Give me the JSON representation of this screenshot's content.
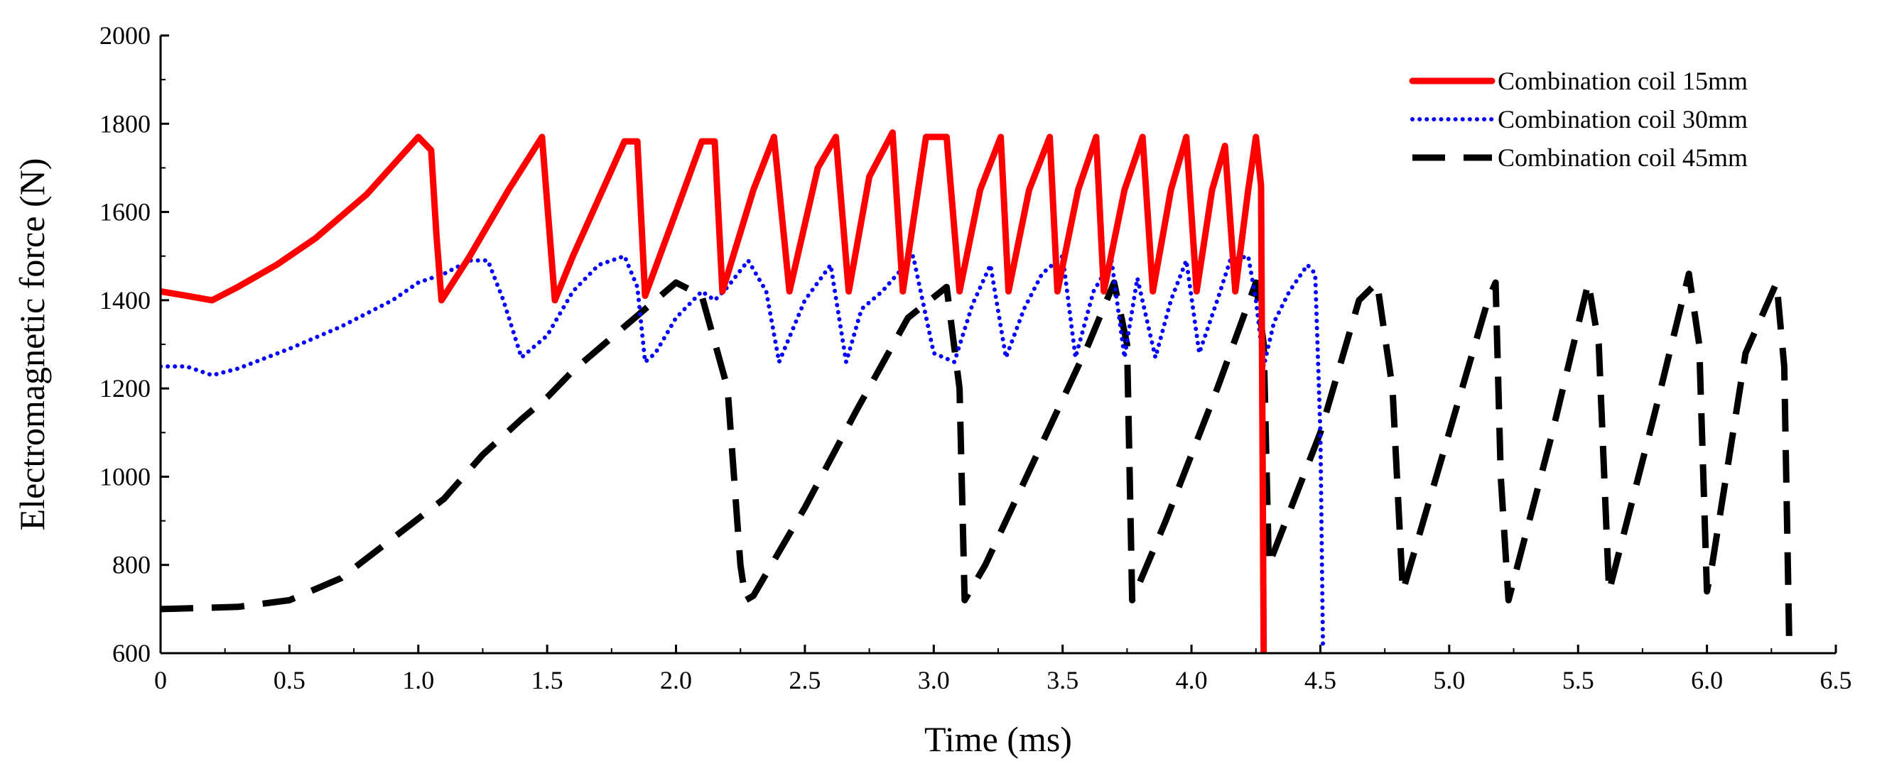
{
  "chart_data": {
    "type": "line",
    "title": "",
    "xlabel": "Time (ms)",
    "ylabel": "Electromagnetic force (N)",
    "xlim": [
      0,
      6.5
    ],
    "ylim": [
      600,
      2000
    ],
    "xticks": [
      0,
      0.5,
      1.0,
      1.5,
      2.0,
      2.5,
      3.0,
      3.5,
      4.0,
      4.5,
      5.0,
      5.5,
      6.0,
      6.5
    ],
    "xtick_labels": [
      "0",
      "0.5",
      "1.0",
      "1.5",
      "2.0",
      "2.5",
      "3.0",
      "3.5",
      "4.0",
      "4.5",
      "5.0",
      "5.5",
      "6.0",
      "6.5"
    ],
    "yticks": [
      600,
      800,
      1000,
      1200,
      1400,
      1600,
      1800,
      2000
    ],
    "ytick_labels": [
      "600",
      "800",
      "1000",
      "1200",
      "1400",
      "1600",
      "1800",
      "2000"
    ],
    "grid": false,
    "legend_position": "top-right",
    "series": [
      {
        "name": "Combination coil 15mm",
        "color": "#ff0000",
        "style": "solid",
        "x": [
          0,
          0.1,
          0.2,
          0.3,
          0.45,
          0.6,
          0.8,
          1.0,
          1.05,
          1.07,
          1.09,
          1.2,
          1.35,
          1.48,
          1.53,
          1.6,
          1.8,
          1.85,
          1.88,
          2.0,
          2.1,
          2.15,
          2.18,
          2.3,
          2.38,
          2.44,
          2.55,
          2.62,
          2.67,
          2.75,
          2.84,
          2.88,
          2.97,
          3.05,
          3.1,
          3.18,
          3.26,
          3.29,
          3.37,
          3.45,
          3.48,
          3.56,
          3.63,
          3.66,
          3.74,
          3.81,
          3.85,
          3.92,
          3.98,
          4.02,
          4.08,
          4.13,
          4.17,
          4.22,
          4.25,
          4.27,
          4.28
        ],
        "y": [
          1420,
          1410,
          1400,
          1430,
          1480,
          1540,
          1640,
          1770,
          1740,
          1550,
          1400,
          1500,
          1650,
          1770,
          1400,
          1500,
          1760,
          1760,
          1410,
          1600,
          1760,
          1760,
          1420,
          1650,
          1770,
          1420,
          1700,
          1770,
          1420,
          1680,
          1780,
          1420,
          1770,
          1770,
          1420,
          1650,
          1770,
          1420,
          1650,
          1770,
          1420,
          1650,
          1770,
          1420,
          1650,
          1770,
          1420,
          1650,
          1770,
          1420,
          1650,
          1750,
          1420,
          1650,
          1770,
          1660,
          600
        ]
      },
      {
        "name": "Combination coil 30mm",
        "color": "#0000ff",
        "style": "dotted",
        "x": [
          0,
          0.1,
          0.2,
          0.3,
          0.5,
          0.7,
          0.9,
          1.0,
          1.1,
          1.2,
          1.27,
          1.33,
          1.4,
          1.5,
          1.6,
          1.7,
          1.8,
          1.85,
          1.88,
          1.92,
          2.0,
          2.1,
          2.15,
          2.2,
          2.28,
          2.35,
          2.4,
          2.5,
          2.6,
          2.66,
          2.72,
          2.8,
          2.92,
          3.0,
          3.08,
          3.15,
          3.22,
          3.28,
          3.35,
          3.42,
          3.5,
          3.55,
          3.62,
          3.69,
          3.74,
          3.79,
          3.86,
          3.92,
          3.98,
          4.03,
          4.1,
          4.15,
          4.22,
          4.25,
          4.28,
          4.32,
          4.38,
          4.45,
          4.48,
          4.5,
          4.51
        ],
        "y": [
          1250,
          1250,
          1230,
          1245,
          1290,
          1340,
          1400,
          1440,
          1460,
          1490,
          1490,
          1400,
          1270,
          1320,
          1420,
          1480,
          1500,
          1430,
          1260,
          1280,
          1360,
          1420,
          1400,
          1430,
          1490,
          1420,
          1260,
          1400,
          1480,
          1260,
          1380,
          1420,
          1500,
          1280,
          1260,
          1390,
          1480,
          1270,
          1380,
          1460,
          1500,
          1270,
          1420,
          1490,
          1270,
          1450,
          1270,
          1400,
          1490,
          1280,
          1400,
          1490,
          1500,
          1400,
          1250,
          1350,
          1420,
          1480,
          1460,
          1100,
          620
        ]
      },
      {
        "name": "Combination coil 45mm",
        "color": "#000000",
        "style": "dashed",
        "x": [
          0,
          0.3,
          0.5,
          0.7,
          0.9,
          1.1,
          1.25,
          1.4,
          1.5,
          1.6,
          1.7,
          1.8,
          1.9,
          2.0,
          2.1,
          2.2,
          2.25,
          2.27,
          2.3,
          2.5,
          2.7,
          2.9,
          3.05,
          3.1,
          3.12,
          3.2,
          3.4,
          3.6,
          3.7,
          3.75,
          3.77,
          3.9,
          4.1,
          4.25,
          4.28,
          4.3,
          4.5,
          4.65,
          4.72,
          4.78,
          4.82,
          5.0,
          5.15,
          5.18,
          5.2,
          5.23,
          5.4,
          5.54,
          5.58,
          5.62,
          5.8,
          5.93,
          5.97,
          6.0,
          6.02,
          6.15,
          6.27,
          6.3,
          6.32
        ],
        "y": [
          700,
          705,
          720,
          770,
          860,
          950,
          1050,
          1130,
          1180,
          1240,
          1290,
          1340,
          1390,
          1440,
          1410,
          1200,
          800,
          720,
          730,
          930,
          1150,
          1360,
          1430,
          1200,
          720,
          800,
          1050,
          1300,
          1440,
          1300,
          720,
          900,
          1200,
          1440,
          1300,
          800,
          1100,
          1400,
          1440,
          1200,
          740,
          1100,
          1400,
          1440,
          1000,
          720,
          1100,
          1440,
          1300,
          740,
          1150,
          1460,
          1300,
          740,
          800,
          1280,
          1440,
          1250,
          600
        ]
      }
    ]
  }
}
